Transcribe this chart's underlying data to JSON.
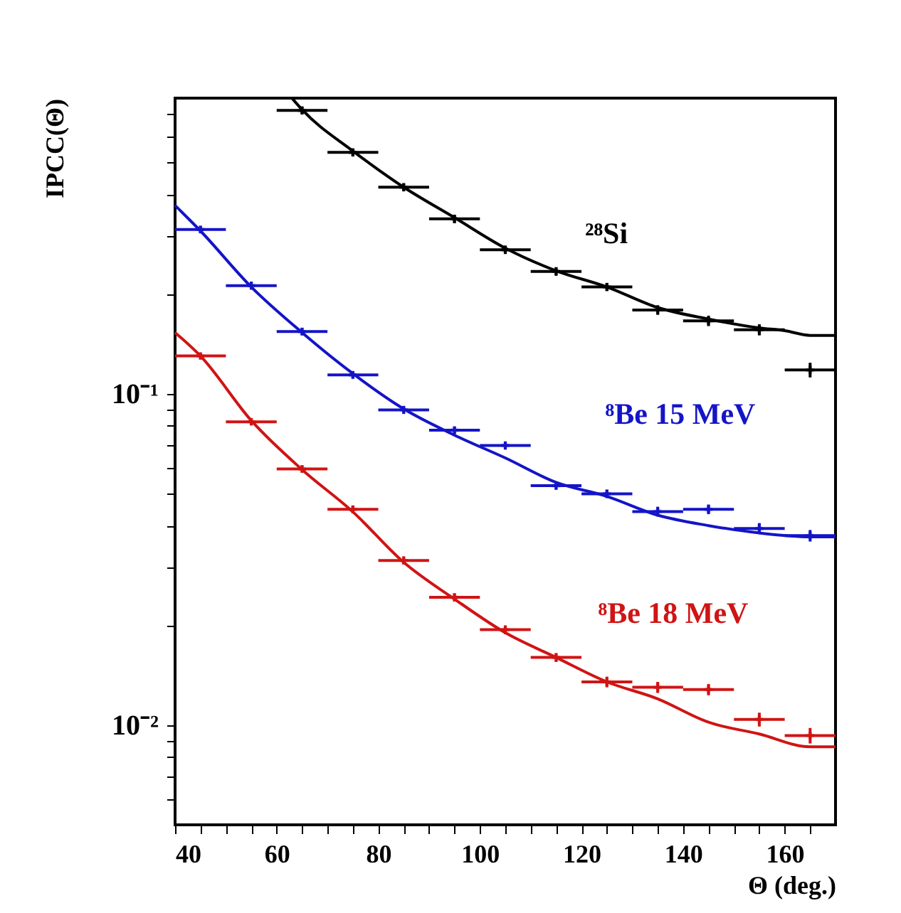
{
  "chart_data": {
    "type": "line",
    "xlabel": "Θ (deg.)",
    "ylabel": "IPCC(Θ)",
    "log": "y",
    "grid": false,
    "xlim": [
      40,
      170
    ],
    "ylim": [
      0.005,
      0.78
    ],
    "xticks": [
      40,
      {
        "value": 45,
        "label": null
      },
      {
        "value": 50,
        "label": null
      },
      {
        "value": 55,
        "label": null
      },
      60,
      {
        "value": 65,
        "label": null
      },
      {
        "value": 70,
        "label": null
      },
      {
        "value": 75,
        "label": null
      },
      80,
      {
        "value": 85,
        "label": null
      },
      {
        "value": 90,
        "label": null
      },
      {
        "value": 95,
        "label": null
      },
      100,
      {
        "value": 105,
        "label": null
      },
      {
        "value": 110,
        "label": null
      },
      {
        "value": 115,
        "label": null
      },
      120,
      {
        "value": 125,
        "label": null
      },
      {
        "value": 130,
        "label": null
      },
      {
        "value": 135,
        "label": null
      },
      140,
      {
        "value": 145,
        "label": null
      },
      {
        "value": 150,
        "label": null
      },
      {
        "value": 155,
        "label": null
      },
      160,
      {
        "value": 165,
        "label": null
      }
    ],
    "yticks": [
      {
        "value": 0.006,
        "label": null
      },
      {
        "value": 0.007,
        "label": null
      },
      {
        "value": 0.008,
        "label": null
      },
      {
        "value": 0.009,
        "label": null
      },
      {
        "value": 0.01,
        "label": "10⁻²"
      },
      {
        "value": 0.02,
        "label": null
      },
      {
        "value": 0.03,
        "label": null
      },
      {
        "value": 0.04,
        "label": null
      },
      {
        "value": 0.05,
        "label": null
      },
      {
        "value": 0.06,
        "label": null
      },
      {
        "value": 0.07,
        "label": null
      },
      {
        "value": 0.08,
        "label": null
      },
      {
        "value": 0.09,
        "label": null
      },
      {
        "value": 0.1,
        "label": "10⁻¹"
      },
      {
        "value": 0.2,
        "label": null
      },
      {
        "value": 0.3,
        "label": null
      },
      {
        "value": 0.4,
        "label": null
      },
      {
        "value": 0.5,
        "label": null
      },
      {
        "value": 0.6,
        "label": null
      },
      {
        "value": 0.7,
        "label": null
      }
    ],
    "series": [
      {
        "name": "²⁸Si",
        "color": "#000000",
        "x": [
          63,
          65,
          75,
          85,
          95,
          105,
          115,
          125,
          135,
          145,
          155,
          160,
          165,
          170
        ],
        "values": [
          0.78,
          0.72,
          0.54,
          0.42,
          0.34,
          0.275,
          0.235,
          0.21,
          0.182,
          0.168,
          0.158,
          0.155,
          0.15,
          0.15
        ]
      },
      {
        "name": "⁸Be 15 MeV",
        "color": "#1414c8",
        "x": [
          40,
          45,
          55,
          65,
          75,
          85,
          95,
          105,
          115,
          125,
          135,
          145,
          155,
          165,
          170
        ],
        "values": [
          0.37,
          0.31,
          0.21,
          0.153,
          0.115,
          0.09,
          0.075,
          0.064,
          0.054,
          0.049,
          0.043,
          0.04,
          0.038,
          0.037,
          0.037
        ]
      },
      {
        "name": "⁸Be 18 MeV",
        "color": "#d01414",
        "x": [
          40,
          45,
          55,
          65,
          75,
          85,
          95,
          105,
          115,
          125,
          135,
          145,
          155,
          165,
          170
        ],
        "values": [
          0.153,
          0.13,
          0.083,
          0.059,
          0.044,
          0.031,
          0.024,
          0.019,
          0.016,
          0.0135,
          0.012,
          0.0102,
          0.0094,
          0.0086,
          0.0086
        ]
      },
      {
        "type": "scatter",
        "marker": "cross",
        "color": "#000000",
        "x": [
          65,
          75,
          85,
          95,
          105,
          115,
          125,
          135,
          145,
          155,
          165
        ],
        "values": [
          0.716,
          0.535,
          0.42,
          0.337,
          0.272,
          0.234,
          0.21,
          0.179,
          0.166,
          0.156,
          0.118
        ],
        "xerrors": [
          5,
          5,
          5,
          5,
          5,
          5,
          5,
          5,
          5,
          5,
          5
        ],
        "errors": [
          0.02,
          0.015,
          0.012,
          0.01,
          0.008,
          0.007,
          0.006,
          0.006,
          0.006,
          0.006,
          0.006
        ]
      },
      {
        "type": "scatter",
        "marker": "cross",
        "color": "#1414c8",
        "x": [
          45,
          55,
          65,
          75,
          85,
          95,
          105,
          115,
          125,
          135,
          145,
          155,
          165
        ],
        "values": [
          0.313,
          0.212,
          0.154,
          0.114,
          0.0894,
          0.0776,
          0.0698,
          0.0528,
          0.0499,
          0.0441,
          0.0448,
          0.0392,
          0.0373
        ],
        "xerrors": [
          5,
          5,
          5,
          5,
          5,
          5,
          5,
          5,
          5,
          5,
          5,
          5,
          5
        ],
        "errors": [
          0.008,
          0.006,
          0.004,
          0.003,
          0.0025,
          0.002,
          0.002,
          0.0015,
          0.0015,
          0.0015,
          0.0015,
          0.0015,
          0.0015
        ]
      },
      {
        "type": "scatter",
        "marker": "cross",
        "color": "#d01414",
        "x": [
          45,
          55,
          65,
          75,
          85,
          95,
          105,
          115,
          125,
          135,
          145,
          155,
          165
        ],
        "values": [
          0.13,
          0.0823,
          0.0593,
          0.0448,
          0.0314,
          0.0243,
          0.0194,
          0.016,
          0.0135,
          0.013,
          0.0128,
          0.0104,
          0.0093
        ],
        "xerrors": [
          5,
          5,
          5,
          5,
          5,
          5,
          5,
          5,
          5,
          5,
          5,
          5,
          5
        ],
        "errors": [
          0.003,
          0.002,
          0.0015,
          0.0012,
          0.0009,
          0.0007,
          0.0006,
          0.0005,
          0.0005,
          0.0005,
          0.0005,
          0.0005,
          0.0005
        ]
      }
    ]
  }
}
